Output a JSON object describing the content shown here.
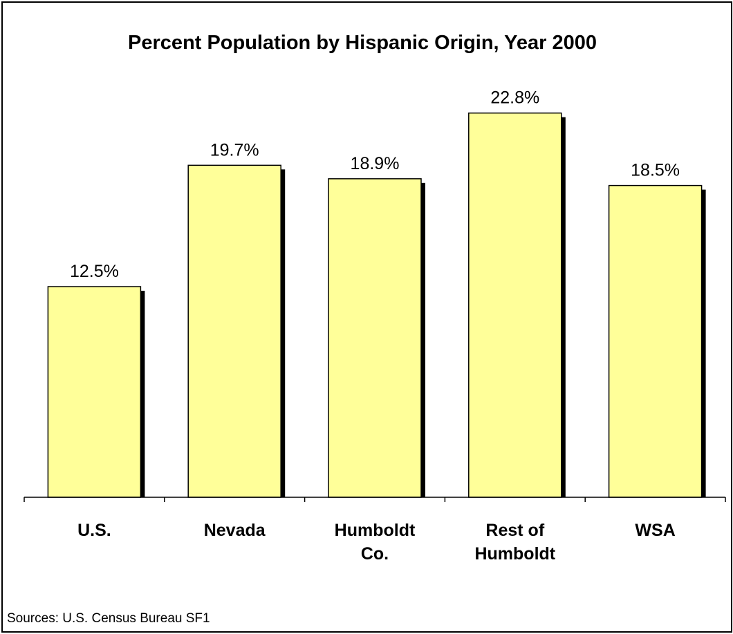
{
  "chart_data": {
    "type": "bar",
    "title": "Percent Population by Hispanic Origin, Year 2000",
    "categories": [
      [
        "U.S."
      ],
      [
        "Nevada"
      ],
      [
        "Humboldt",
        "Co."
      ],
      [
        "Rest of",
        "Humboldt"
      ],
      [
        "WSA"
      ]
    ],
    "values": [
      12.5,
      19.7,
      18.9,
      22.8,
      18.5
    ],
    "value_labels": [
      "12.5%",
      "19.7%",
      "18.9%",
      "22.8%",
      "18.5%"
    ],
    "xlabel": "",
    "ylabel": "",
    "ylim": [
      0,
      28
    ],
    "grid": false,
    "bar_color": "#FFFF99",
    "shadow_color": "#000000"
  },
  "footer": {
    "source": "Sources: U.S.  Census Bureau SF1"
  }
}
